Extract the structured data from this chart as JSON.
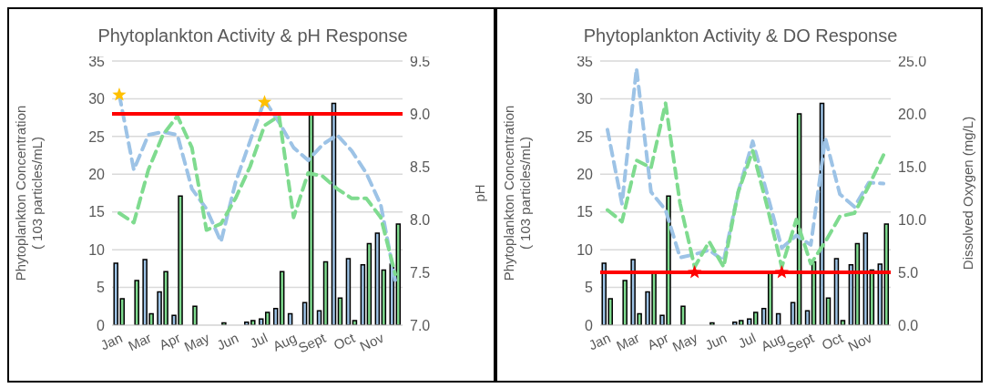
{
  "chart_data": [
    {
      "type": "bar",
      "title": "Phytoplankton  Activity & pH Response",
      "ylabel": "Phytoplankton  Concentration\n( 103 particles/mL)",
      "y2label": "pH",
      "categories": [
        "Jan",
        null,
        "Mar",
        null,
        "Apr",
        null,
        "May",
        null,
        "Jun",
        null,
        "Jul",
        null,
        "Aug",
        null,
        "Sept",
        null,
        "Oct",
        null,
        "Nov",
        null
      ],
      "series": [
        {
          "color": "#9dc3e6",
          "values": [
            8.2,
            0,
            8.7,
            4.4,
            1.3,
            0,
            0,
            0,
            0,
            0.4,
            0.8,
            2.2,
            1.5,
            3.0,
            1.9,
            29.4,
            8.8,
            8.0,
            12.2,
            8.1
          ]
        },
        {
          "color": "#7fdb8f",
          "values": [
            3.5,
            5.9,
            1.5,
            7.1,
            17.1,
            2.5,
            0,
            0.3,
            0,
            0.6,
            1.7,
            7.1,
            0,
            28.0,
            8.4,
            3.6,
            0.6,
            10.8,
            7.3,
            13.4
          ]
        },
        {
          "type": "line",
          "axis": "y2",
          "color": "#9dc3e6",
          "line_style": "dashed",
          "marker": "none",
          "values": [
            9.18,
            8.47,
            8.8,
            8.83,
            8.8,
            8.29,
            8.1,
            7.79,
            8.35,
            8.74,
            9.13,
            8.92,
            8.68,
            8.56,
            8.71,
            8.8,
            8.65,
            8.44,
            8.14,
            7.42
          ]
        },
        {
          "type": "line",
          "axis": "y2",
          "color": "#7fdb8f",
          "line_style": "dashed",
          "marker": "none",
          "values": [
            8.06,
            7.97,
            8.47,
            8.8,
            8.98,
            8.68,
            7.9,
            7.96,
            8.2,
            8.5,
            8.89,
            8.98,
            8.02,
            8.44,
            8.41,
            8.29,
            8.2,
            8.2,
            8.02,
            7.48
          ]
        },
        {
          "type": "scatter",
          "axis": "y2",
          "color": "#ffc000",
          "marker": "star",
          "values": [
            9.18,
            null,
            null,
            null,
            null,
            null,
            null,
            null,
            null,
            null,
            9.11,
            null,
            null,
            null,
            null,
            null,
            null,
            null,
            null,
            null
          ]
        }
      ],
      "ylim": [
        0,
        35
      ],
      "yticks": [
        0,
        5,
        10,
        15,
        20,
        25,
        30,
        35
      ],
      "y2lim": [
        7,
        9.5
      ],
      "y2ticks": [
        {
          "value": 7,
          "label": "7.0"
        },
        {
          "value": 7.5,
          "label": "7.5"
        },
        {
          "value": 8,
          "label": "8.0"
        },
        {
          "value": 8.5,
          "label": "8.5"
        },
        {
          "value": 9,
          "label": "9.0"
        },
        {
          "value": 9.5,
          "label": "9.5"
        }
      ],
      "ref_lines": [
        {
          "axis": "y2",
          "value": 9.0,
          "color": "#ff0000"
        }
      ],
      "grid": "y",
      "legend": false
    },
    {
      "type": "bar",
      "title": "Phytoplankton  Activity & DO Response",
      "ylabel": "Phytoplankton  Concentration\n( 103 particles/mL)",
      "y2label": "Dissolved  Oxygen  (mg/L)",
      "categories": [
        "Jan",
        null,
        "Mar",
        null,
        "Apr",
        null,
        "May",
        null,
        "Jun",
        null,
        "Jul",
        null,
        "Aug",
        null,
        "Sept",
        null,
        "Oct",
        null,
        "Nov",
        null
      ],
      "series": [
        {
          "color": "#9dc3e6",
          "values": [
            8.2,
            0,
            8.7,
            4.4,
            1.3,
            0,
            0,
            0,
            0,
            0.4,
            0.8,
            2.2,
            1.5,
            3.0,
            1.9,
            29.4,
            8.8,
            8.0,
            12.2,
            8.1
          ]
        },
        {
          "color": "#7fdb8f",
          "values": [
            3.5,
            5.9,
            1.5,
            7.1,
            17.1,
            2.5,
            0,
            0.3,
            0,
            0.6,
            1.7,
            7.1,
            0,
            28.0,
            8.4,
            3.6,
            0.6,
            10.8,
            7.3,
            13.4
          ]
        },
        {
          "type": "line",
          "axis": "y2",
          "color": "#9dc3e6",
          "line_style": "dashed",
          "marker": "none",
          "values": [
            18.5,
            11.5,
            24.3,
            12.6,
            10.9,
            6.4,
            6.7,
            7.1,
            6.1,
            12.6,
            17.4,
            12.4,
            7.3,
            8.5,
            7.6,
            17.7,
            12.4,
            11.2,
            13.5,
            13.4
          ]
        },
        {
          "type": "line",
          "axis": "y2",
          "color": "#7fdb8f",
          "line_style": "dashed",
          "marker": "none",
          "values": [
            10.9,
            9.8,
            15.6,
            14.9,
            21.0,
            11.5,
            5.5,
            7.9,
            5.5,
            12.6,
            16.5,
            11.2,
            5.5,
            10.0,
            5.8,
            7.9,
            10.3,
            10.6,
            13.2,
            16.1
          ]
        },
        {
          "type": "scatter",
          "axis": "y2",
          "color": "#ff0000",
          "marker": "star",
          "values": [
            null,
            null,
            null,
            null,
            null,
            null,
            5.0,
            null,
            null,
            null,
            null,
            null,
            5.0,
            null,
            null,
            null,
            null,
            null,
            null,
            null
          ]
        }
      ],
      "ylim": [
        0,
        35
      ],
      "yticks": [
        0,
        5,
        10,
        15,
        20,
        25,
        30,
        35
      ],
      "y2lim": [
        0,
        25
      ],
      "y2ticks": [
        {
          "value": 0,
          "label": "0.0"
        },
        {
          "value": 5,
          "label": "5.0"
        },
        {
          "value": 10,
          "label": "10.0"
        },
        {
          "value": 15,
          "label": "15.0"
        },
        {
          "value": 20,
          "label": "20.0"
        },
        {
          "value": 25,
          "label": "25.0"
        }
      ],
      "ref_lines": [
        {
          "axis": "y2",
          "value": 5.0,
          "color": "#ff0000"
        }
      ],
      "grid": "y",
      "legend": false
    }
  ]
}
